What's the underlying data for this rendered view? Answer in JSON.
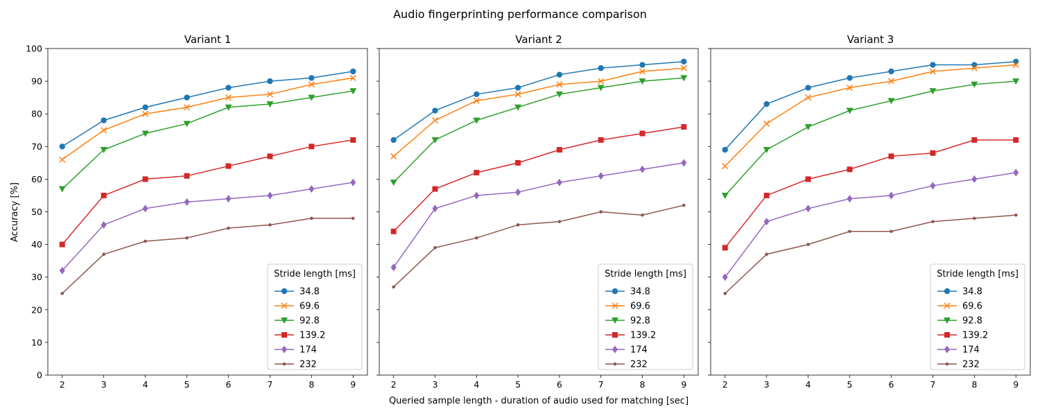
{
  "chart_data": {
    "type": "line",
    "title": "Audio fingerprinting performance comparison",
    "xlabel": "Queried sample length - duration of audio used for matching [sec]",
    "ylabel": "Accuracy [%]",
    "x": [
      2,
      3,
      4,
      5,
      6,
      7,
      8,
      9
    ],
    "xticks": [
      "2",
      "3",
      "4",
      "5",
      "6",
      "7",
      "8",
      "9"
    ],
    "ylim": [
      0,
      100
    ],
    "yticks": [
      "0",
      "10",
      "20",
      "30",
      "40",
      "50",
      "60",
      "70",
      "80",
      "90",
      "100"
    ],
    "legend_title": "Stride length [ms]",
    "legend_loc": "lower right",
    "series_styles": [
      {
        "name": "34.8",
        "color": "#1f77b4",
        "marker": "circle"
      },
      {
        "name": "69.6",
        "color": "#ff7f0e",
        "marker": "x"
      },
      {
        "name": "92.8",
        "color": "#2ca02c",
        "marker": "triangle-down"
      },
      {
        "name": "139.2",
        "color": "#d62728",
        "marker": "square"
      },
      {
        "name": "174",
        "color": "#9467bd",
        "marker": "diamond"
      },
      {
        "name": "232",
        "color": "#8c564b",
        "marker": "point"
      }
    ],
    "panels": [
      {
        "title": "Variant 1",
        "series": [
          {
            "name": "34.8",
            "values": [
              70,
              78,
              82,
              85,
              88,
              90,
              91,
              93
            ]
          },
          {
            "name": "69.6",
            "values": [
              66,
              75,
              80,
              82,
              85,
              86,
              89,
              91
            ]
          },
          {
            "name": "92.8",
            "values": [
              57,
              69,
              74,
              77,
              82,
              83,
              85,
              87
            ]
          },
          {
            "name": "139.2",
            "values": [
              40,
              55,
              60,
              61,
              64,
              67,
              70,
              72
            ]
          },
          {
            "name": "174",
            "values": [
              32,
              46,
              51,
              53,
              54,
              55,
              57,
              59
            ]
          },
          {
            "name": "232",
            "values": [
              25,
              37,
              41,
              42,
              45,
              46,
              48,
              48
            ]
          }
        ]
      },
      {
        "title": "Variant 2",
        "series": [
          {
            "name": "34.8",
            "values": [
              72,
              81,
              86,
              88,
              92,
              94,
              95,
              96
            ]
          },
          {
            "name": "69.6",
            "values": [
              67,
              78,
              84,
              86,
              89,
              90,
              93,
              94
            ]
          },
          {
            "name": "92.8",
            "values": [
              59,
              72,
              78,
              82,
              86,
              88,
              90,
              91
            ]
          },
          {
            "name": "139.2",
            "values": [
              44,
              57,
              62,
              65,
              69,
              72,
              74,
              76
            ]
          },
          {
            "name": "174",
            "values": [
              33,
              51,
              55,
              56,
              59,
              61,
              63,
              65
            ]
          },
          {
            "name": "232",
            "values": [
              27,
              39,
              42,
              46,
              47,
              50,
              49,
              52
            ]
          }
        ]
      },
      {
        "title": "Variant 3",
        "series": [
          {
            "name": "34.8",
            "values": [
              69,
              83,
              88,
              91,
              93,
              95,
              95,
              96
            ]
          },
          {
            "name": "69.6",
            "values": [
              64,
              77,
              85,
              88,
              90,
              93,
              94,
              95
            ]
          },
          {
            "name": "92.8",
            "values": [
              55,
              69,
              76,
              81,
              84,
              87,
              89,
              90
            ]
          },
          {
            "name": "139.2",
            "values": [
              39,
              55,
              60,
              63,
              67,
              68,
              72,
              72
            ]
          },
          {
            "name": "174",
            "values": [
              30,
              47,
              51,
              54,
              55,
              58,
              60,
              62
            ]
          },
          {
            "name": "232",
            "values": [
              25,
              37,
              40,
              44,
              44,
              47,
              48,
              49
            ]
          }
        ]
      }
    ]
  }
}
